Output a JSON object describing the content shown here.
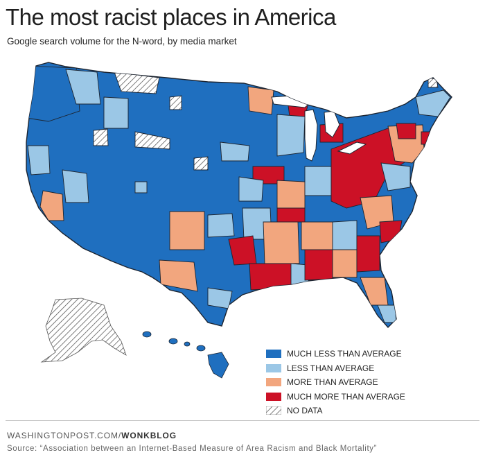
{
  "header": {
    "title": "The most racist places in America",
    "subtitle": "Google search volume for the N-word, by media market"
  },
  "colors": {
    "much_less": "#1f6fbf",
    "less": "#9bc7e6",
    "more": "#f2a67e",
    "much_more": "#cc1126",
    "no_data": "#ffffff",
    "border": "#1c2430"
  },
  "legend": [
    {
      "key": "much_less",
      "label": "MUCH LESS THAN AVERAGE"
    },
    {
      "key": "less",
      "label": "LESS THAN AVERAGE"
    },
    {
      "key": "more",
      "label": "MORE THAN AVERAGE"
    },
    {
      "key": "much_more",
      "label": "MUCH MORE THAN AVERAGE"
    },
    {
      "key": "no_data",
      "label": "NO DATA"
    }
  ],
  "footer": {
    "site_prefix": "WASHINGTONPOST.COM/",
    "site_bold": "WONKBLOG",
    "source": "Source: “Association between an Internet-Based Measure of Area Racism and Black Mortality”"
  }
}
